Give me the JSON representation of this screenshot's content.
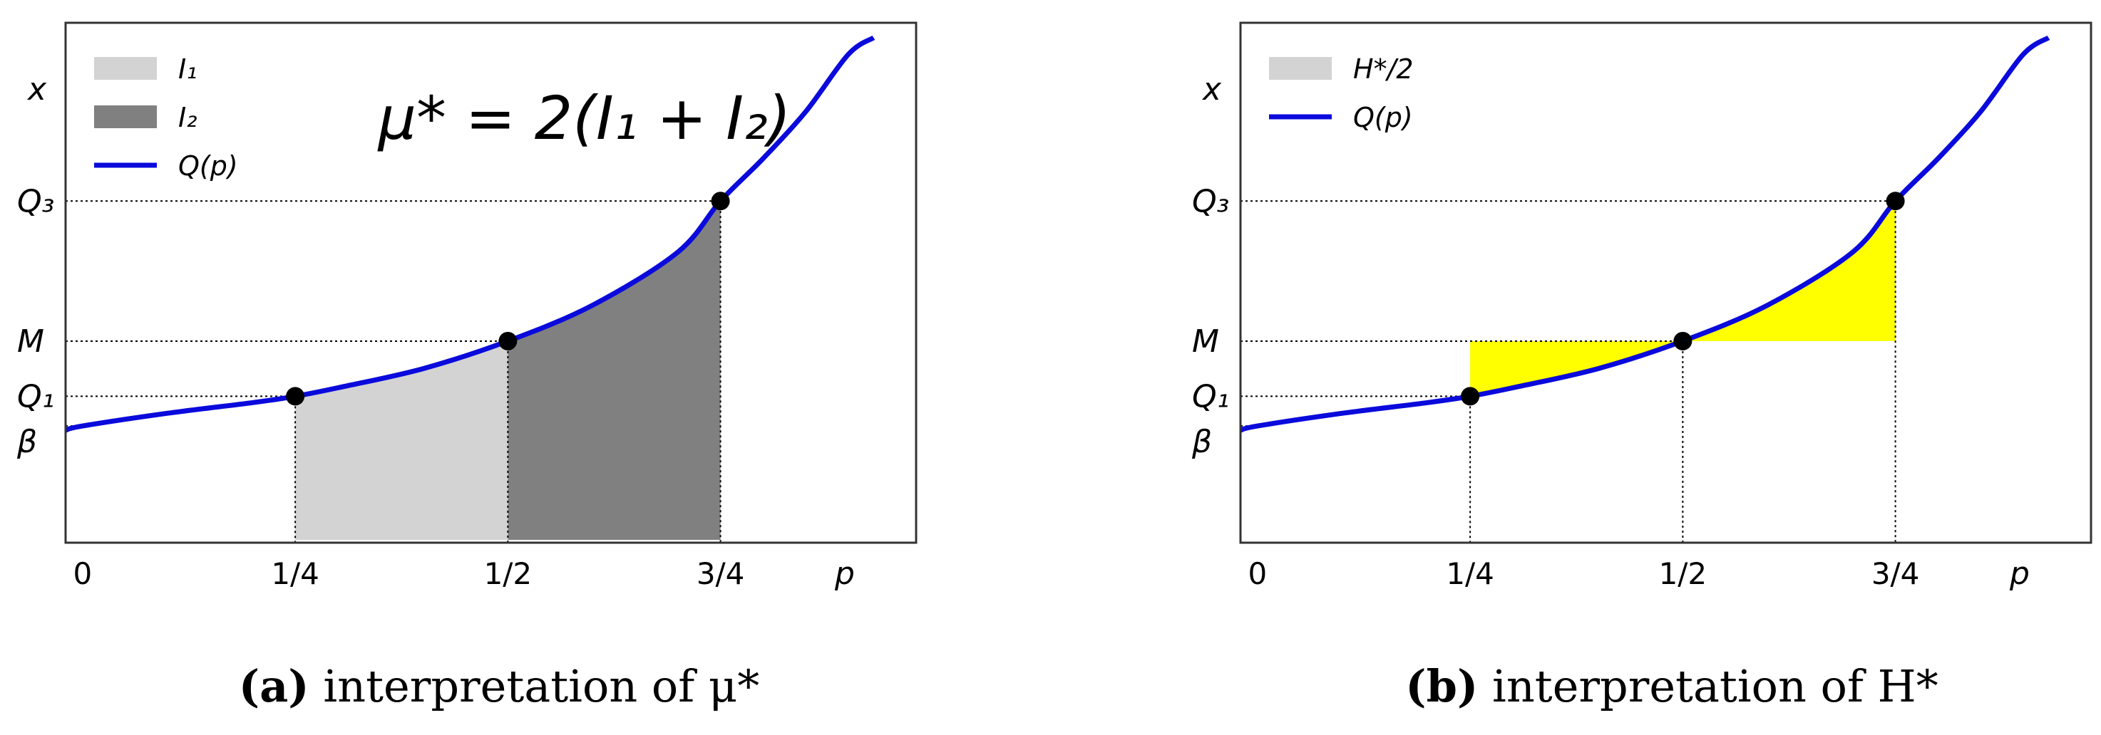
{
  "colors": {
    "curve": "#0a0adc",
    "i1_fill": "#d3d3d3",
    "i2_fill": "#808080",
    "h_fill": "#ffff00",
    "h_legend": "#d3d3d3",
    "point": "#000000",
    "axis": "#333333"
  },
  "chart_data": [
    {
      "type": "area",
      "panel": "a",
      "title": "μ* = 2(I₁ + I₂)",
      "caption": {
        "letter": "(a)",
        "text": " interpretation of μ*"
      },
      "xlabel": "p",
      "ylabel": "x",
      "xlim": [
        -0.02,
        0.98
      ],
      "ylim": [
        -0.25,
        2.2
      ],
      "x_ticks": [
        {
          "value": 0.0,
          "label": "0"
        },
        {
          "value": 0.25,
          "label": "1/4"
        },
        {
          "value": 0.5,
          "label": "1/2"
        },
        {
          "value": 0.75,
          "label": "3/4"
        }
      ],
      "y_ticks": [
        {
          "value": 1.36,
          "label": "Q₃"
        },
        {
          "value": 0.7,
          "label": "M"
        },
        {
          "value": 0.44,
          "label": "Q₁"
        },
        {
          "value": 0.3,
          "label": "β"
        }
      ],
      "legend_position": "top-left",
      "legend": [
        {
          "label": "I₁",
          "kind": "patch",
          "color": "#d3d3d3"
        },
        {
          "label": "I₂",
          "kind": "patch",
          "color": "#808080"
        },
        {
          "label": "Q(p)",
          "kind": "line",
          "color": "#0a0adc"
        }
      ],
      "curve": {
        "name": "Q(p)",
        "x": [
          -0.02,
          0.0,
          0.1,
          0.2,
          0.25,
          0.3,
          0.4,
          0.5,
          0.6,
          0.7,
          0.75,
          0.8,
          0.85,
          0.9,
          0.93
        ],
        "y": [
          0.28,
          0.3,
          0.36,
          0.41,
          0.44,
          0.48,
          0.57,
          0.7,
          0.87,
          1.12,
          1.36,
          1.56,
          1.78,
          2.05,
          2.13
        ]
      },
      "points": [
        {
          "x": 0.25,
          "y": 0.44
        },
        {
          "x": 0.5,
          "y": 0.7
        },
        {
          "x": 0.75,
          "y": 1.36
        }
      ],
      "areas": [
        {
          "name": "I₁",
          "from": 0.25,
          "to": 0.5,
          "color": "#d3d3d3"
        },
        {
          "name": "I₂",
          "from": 0.5,
          "to": 0.75,
          "color": "#808080"
        }
      ]
    },
    {
      "type": "area",
      "panel": "b",
      "caption": {
        "letter": "(b)",
        "text": " interpretation of H*"
      },
      "xlabel": "p",
      "ylabel": "x",
      "xlim": [
        -0.02,
        0.98
      ],
      "ylim": [
        -0.25,
        2.2
      ],
      "x_ticks": [
        {
          "value": 0.0,
          "label": "0"
        },
        {
          "value": 0.25,
          "label": "1/4"
        },
        {
          "value": 0.5,
          "label": "1/2"
        },
        {
          "value": 0.75,
          "label": "3/4"
        }
      ],
      "y_ticks": [
        {
          "value": 1.36,
          "label": "Q₃"
        },
        {
          "value": 0.7,
          "label": "M"
        },
        {
          "value": 0.44,
          "label": "Q₁"
        },
        {
          "value": 0.3,
          "label": "β"
        }
      ],
      "legend_position": "top-left",
      "legend": [
        {
          "label": "H*/2",
          "kind": "patch",
          "color": "#d3d3d3"
        },
        {
          "label": "Q(p)",
          "kind": "line",
          "color": "#0a0adc"
        }
      ],
      "curve": {
        "name": "Q(p)",
        "x": [
          -0.02,
          0.0,
          0.1,
          0.2,
          0.25,
          0.3,
          0.4,
          0.5,
          0.6,
          0.7,
          0.75,
          0.8,
          0.85,
          0.9,
          0.93
        ],
        "y": [
          0.28,
          0.3,
          0.36,
          0.41,
          0.44,
          0.48,
          0.57,
          0.7,
          0.87,
          1.12,
          1.36,
          1.56,
          1.78,
          2.05,
          2.13
        ]
      },
      "points": [
        {
          "x": 0.25,
          "y": 0.44
        },
        {
          "x": 0.5,
          "y": 0.7
        },
        {
          "x": 0.75,
          "y": 1.36
        }
      ],
      "h_region": {
        "level": 0.7,
        "from": 0.25,
        "to": 0.75,
        "color": "#ffff00"
      }
    }
  ]
}
